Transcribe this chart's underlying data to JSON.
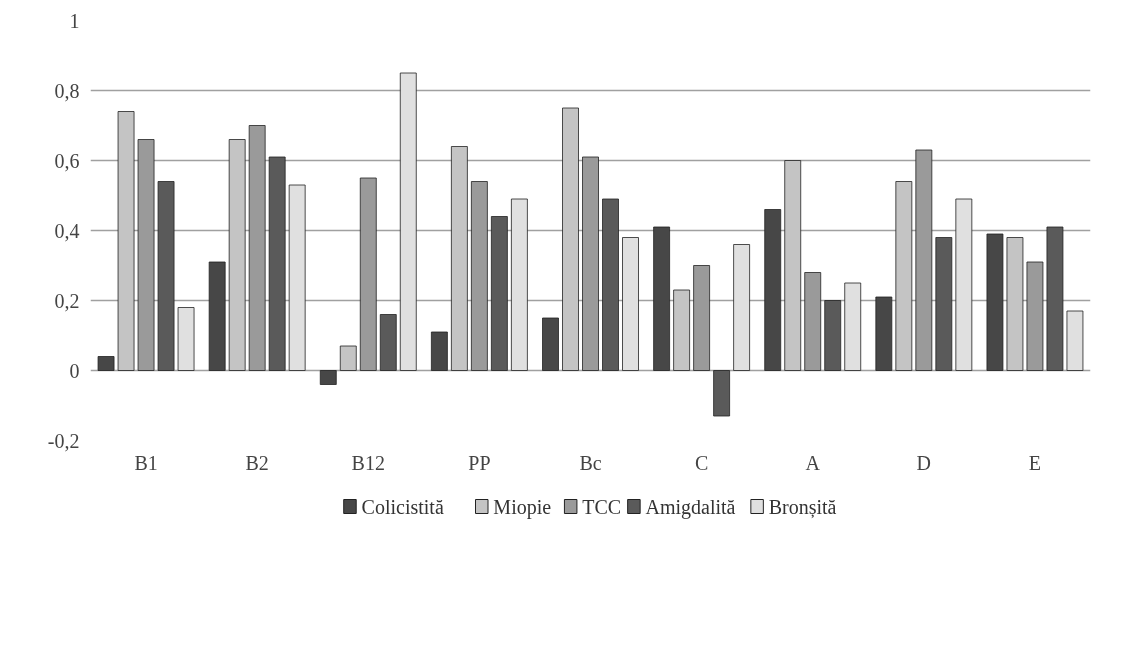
{
  "chart_data": {
    "type": "bar",
    "categories": [
      "B1",
      "B2",
      "B12",
      "PP",
      "Bc",
      "C",
      "A",
      "D",
      "E"
    ],
    "series": [
      {
        "name": "Colicistită",
        "color": "#474747",
        "values": [
          0.04,
          0.31,
          -0.04,
          0.11,
          0.15,
          0.41,
          0.46,
          0.21,
          0.39
        ]
      },
      {
        "name": "Miopie",
        "color": "#c4c4c4",
        "values": [
          0.74,
          0.66,
          0.07,
          0.64,
          0.75,
          0.23,
          0.6,
          0.54,
          0.38
        ]
      },
      {
        "name": "TCC",
        "color": "#9a9a9a",
        "values": [
          0.66,
          0.7,
          0.55,
          0.54,
          0.61,
          0.3,
          0.28,
          0.63,
          0.31
        ]
      },
      {
        "name": "Amigdalită",
        "color": "#5a5a5a",
        "values": [
          0.54,
          0.61,
          0.16,
          0.44,
          0.49,
          -0.13,
          0.2,
          0.38,
          0.41
        ]
      },
      {
        "name": "Bronșită",
        "color": "#e0e0e0",
        "values": [
          0.18,
          0.53,
          0.85,
          0.49,
          0.38,
          0.36,
          0.25,
          0.49,
          0.17
        ]
      }
    ],
    "ylim": [
      -0.2,
      1
    ],
    "yticks": [
      {
        "value": -0.2,
        "label": "-0,2"
      },
      0,
      {
        "value": 0.2,
        "label": "0,2"
      },
      {
        "value": 0.4,
        "label": "0,4"
      },
      {
        "value": 0.6,
        "label": "0,6"
      },
      {
        "value": 0.8,
        "label": "0,8"
      },
      1
    ],
    "grid": "y",
    "legend": "bottom"
  }
}
